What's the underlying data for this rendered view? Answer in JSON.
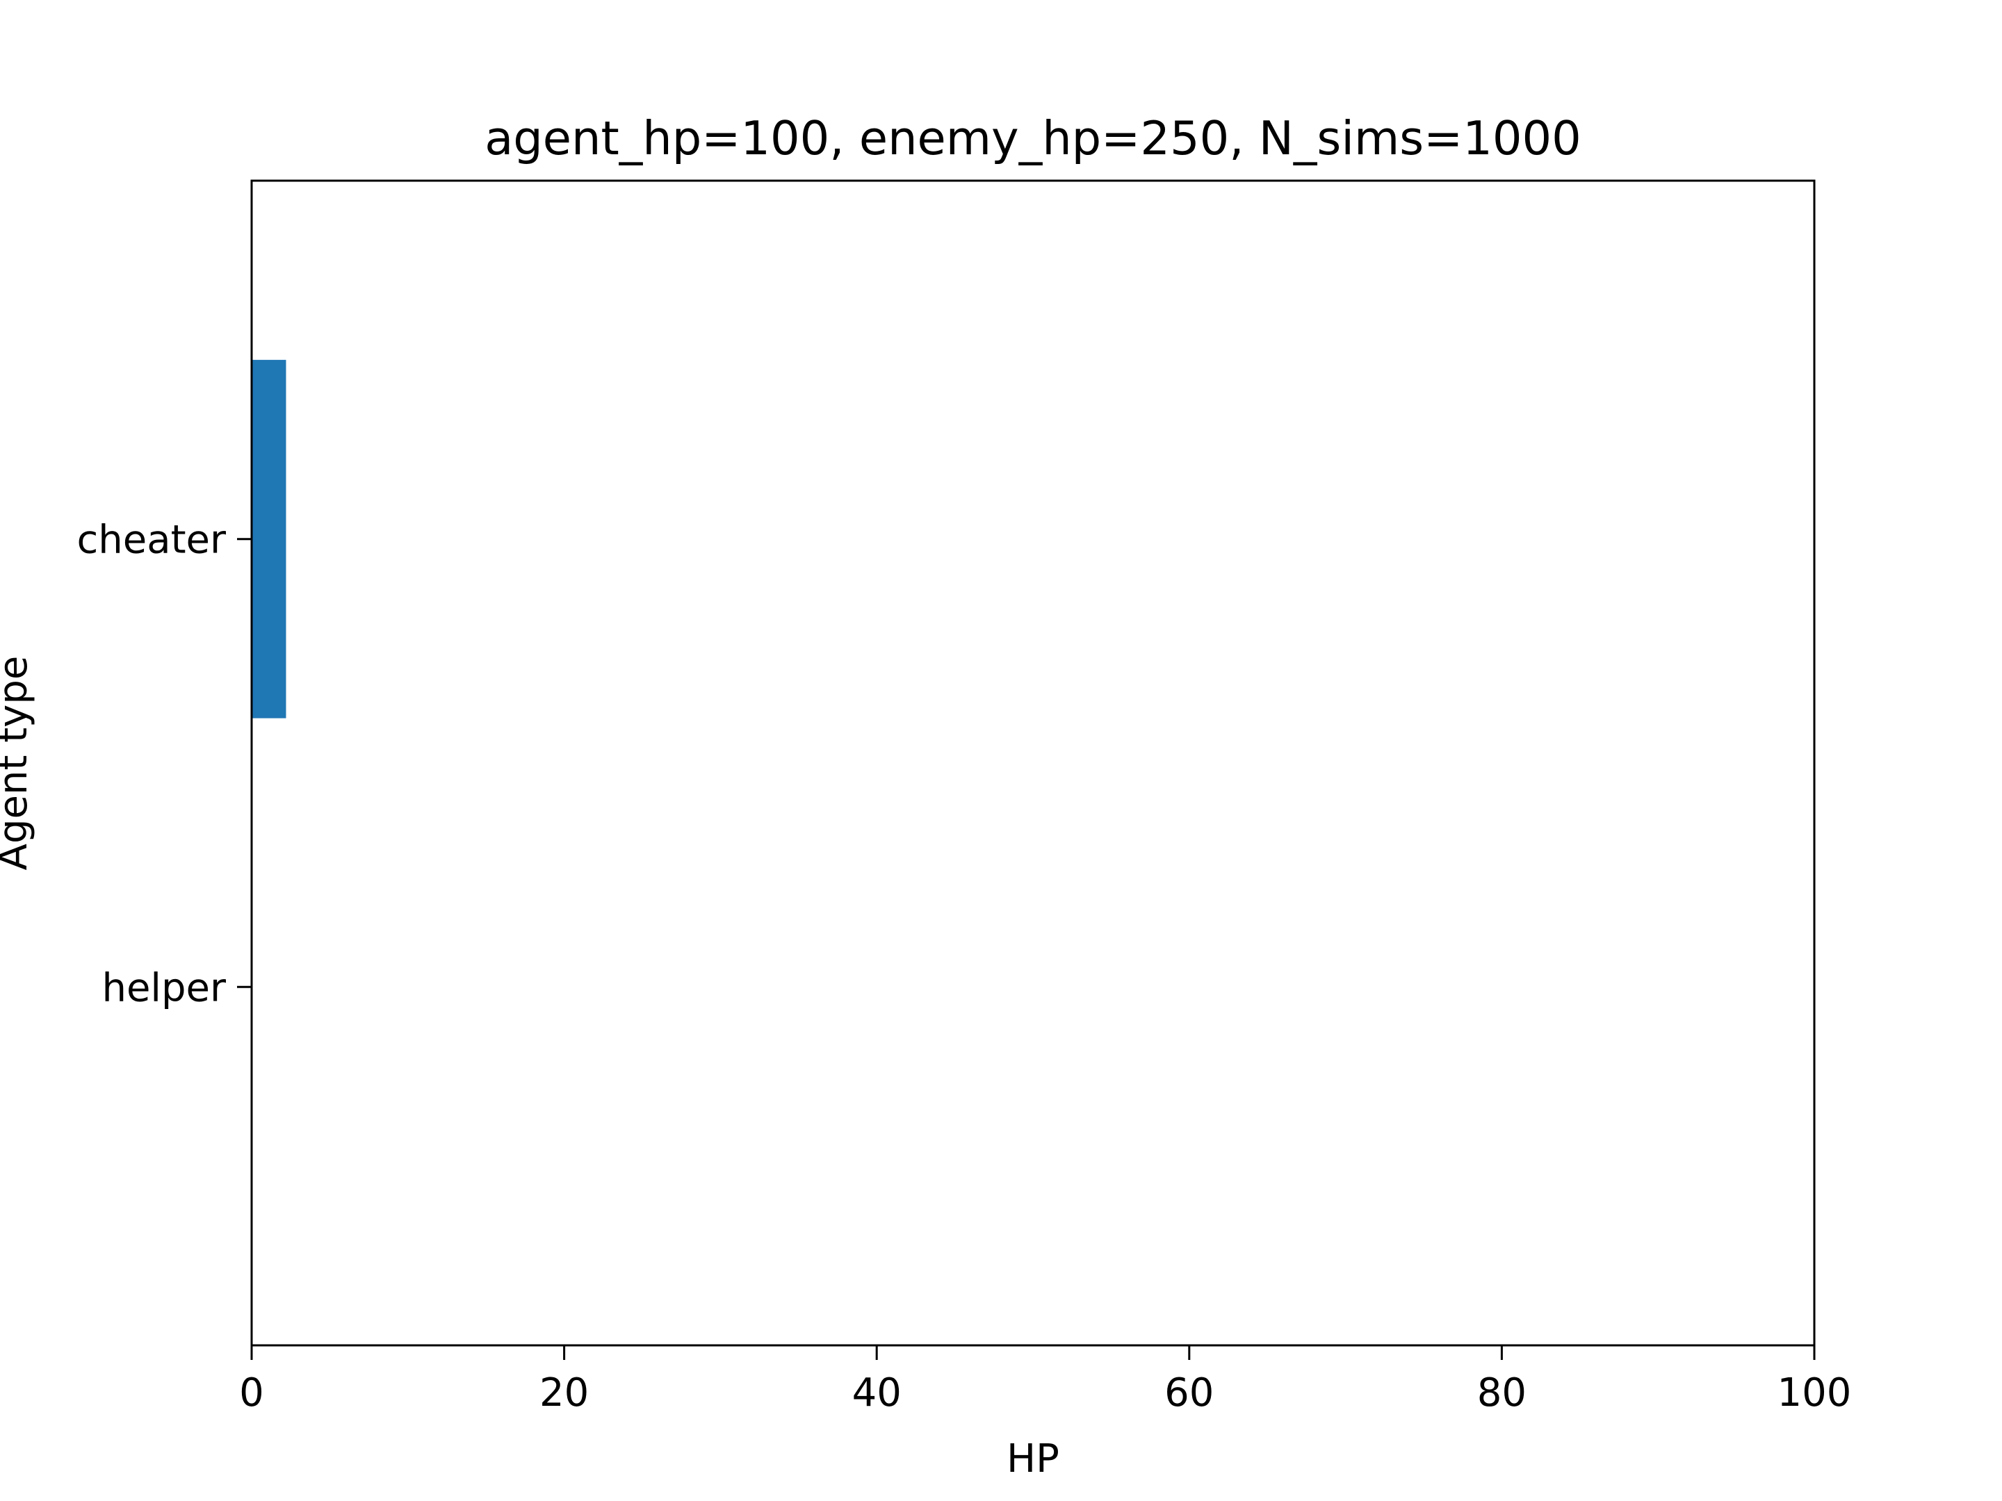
{
  "chart_data": {
    "type": "bar",
    "orientation": "horizontal",
    "title": "agent_hp=100, enemy_hp=250, N_sims=1000",
    "xlabel": "HP",
    "ylabel": "Agent type",
    "categories": [
      "cheater",
      "helper"
    ],
    "values": [
      2.2,
      0
    ],
    "xlim": [
      0,
      100
    ],
    "xticks": [
      0,
      20,
      40,
      60,
      80,
      100
    ],
    "grid": false,
    "legend": "none",
    "bar_color": "#1f77b4"
  }
}
